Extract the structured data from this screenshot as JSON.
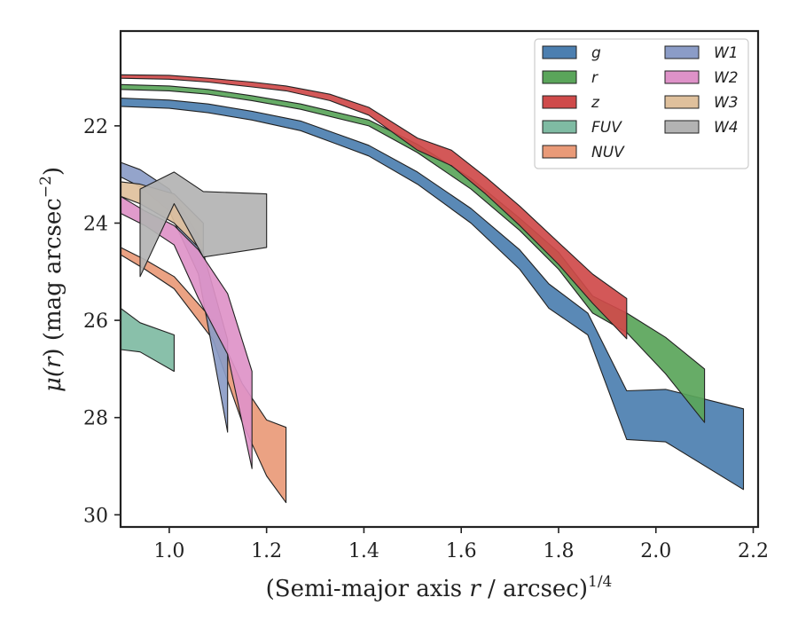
{
  "chart_data": {
    "type": "area",
    "title": "",
    "xlabel": "(Semi-major axis r / arcsec)^1/4",
    "xlabel_parts": {
      "prefix": "(Semi-major axis ",
      "var": "r",
      "mid": " / arcsec)",
      "sup": "1/4"
    },
    "ylabel": "μ(r) (mag arcsec−2)",
    "ylabel_parts": {
      "mu": "μ(",
      "var": "r",
      "close": ") (mag arcsec",
      "sup": "−2",
      "end": ")"
    },
    "xlim": [
      0.9,
      2.21
    ],
    "ylim": [
      30.25,
      20.05
    ],
    "y_inverted": true,
    "xticks": [
      1.0,
      1.2,
      1.4,
      1.6,
      1.8,
      2.0,
      2.2
    ],
    "xtick_labels": [
      "1.0",
      "1.2",
      "1.4",
      "1.6",
      "1.8",
      "2.0",
      "2.2"
    ],
    "yticks": [
      22,
      24,
      26,
      28,
      30
    ],
    "ytick_labels": [
      "22",
      "24",
      "26",
      "28",
      "30"
    ],
    "grid": false,
    "legend_position": "top-right",
    "legend_columns": 2,
    "series": [
      {
        "name": "g",
        "color": "#4c7fb0",
        "x": [
          0.9,
          1.0,
          1.08,
          1.17,
          1.27,
          1.41,
          1.51,
          1.62,
          1.72,
          1.78,
          1.86,
          1.94,
          2.02,
          2.18
        ],
        "y_upper": [
          21.43,
          21.47,
          21.55,
          21.7,
          21.9,
          22.4,
          22.95,
          23.7,
          24.55,
          25.25,
          25.85,
          27.45,
          27.42,
          27.82
        ],
        "y_lower": [
          21.6,
          21.64,
          21.73,
          21.88,
          22.1,
          22.62,
          23.2,
          24.0,
          24.95,
          25.75,
          26.3,
          28.45,
          28.5,
          29.48
        ]
      },
      {
        "name": "r",
        "color": "#5aa55a",
        "x": [
          0.9,
          1.0,
          1.08,
          1.17,
          1.27,
          1.41,
          1.51,
          1.62,
          1.72,
          1.8,
          1.87,
          1.94,
          2.02,
          2.1
        ],
        "y_upper": [
          21.15,
          21.18,
          21.25,
          21.38,
          21.55,
          21.88,
          22.38,
          23.08,
          23.9,
          24.6,
          25.5,
          25.85,
          26.35,
          27.0
        ],
        "y_lower": [
          21.25,
          21.28,
          21.35,
          21.48,
          21.66,
          22.0,
          22.55,
          23.3,
          24.15,
          24.95,
          25.85,
          26.25,
          27.1,
          28.1
        ]
      },
      {
        "name": "z",
        "color": "#cf4a4a",
        "x": [
          0.9,
          1.0,
          1.08,
          1.17,
          1.24,
          1.33,
          1.41,
          1.51,
          1.58,
          1.65,
          1.72,
          1.8,
          1.87,
          1.94
        ],
        "y_upper": [
          20.95,
          20.96,
          21.02,
          21.1,
          21.18,
          21.35,
          21.62,
          22.25,
          22.5,
          23.05,
          23.65,
          24.4,
          25.05,
          25.55
        ],
        "y_lower": [
          21.02,
          21.04,
          21.1,
          21.2,
          21.28,
          21.48,
          21.78,
          22.5,
          22.82,
          23.4,
          24.05,
          24.85,
          25.65,
          26.38
        ]
      },
      {
        "name": "FUV",
        "color": "#7fbba3",
        "x": [
          0.9,
          0.94,
          1.01
        ],
        "y_upper": [
          25.75,
          26.05,
          26.3
        ],
        "y_lower": [
          26.6,
          26.65,
          27.05
        ]
      },
      {
        "name": "NUV",
        "color": "#e99a78",
        "x": [
          0.9,
          0.95,
          1.01,
          1.09,
          1.15,
          1.2,
          1.24
        ],
        "y_upper": [
          24.5,
          24.75,
          25.1,
          26.0,
          27.3,
          28.05,
          28.2
        ],
        "y_lower": [
          24.65,
          24.95,
          25.35,
          26.4,
          28.1,
          29.2,
          29.75
        ]
      },
      {
        "name": "W1",
        "color": "#8b9cc7",
        "x": [
          0.9,
          0.94,
          1.0,
          1.06,
          1.12
        ],
        "y_upper": [
          22.75,
          22.9,
          23.3,
          24.25,
          26.4
        ],
        "y_lower": [
          23.05,
          23.25,
          23.75,
          25.05,
          28.3
        ]
      },
      {
        "name": "W2",
        "color": "#de92c8",
        "x": [
          0.9,
          0.95,
          1.01,
          1.06,
          1.12,
          1.17
        ],
        "y_upper": [
          23.45,
          23.75,
          24.05,
          24.55,
          25.45,
          27.05
        ],
        "y_lower": [
          23.8,
          24.05,
          24.45,
          25.55,
          26.7,
          29.05
        ]
      },
      {
        "name": "W3",
        "color": "#dfc09c",
        "x": [
          0.9,
          0.94,
          1.01,
          1.07
        ],
        "y_upper": [
          23.15,
          23.2,
          23.4,
          24.0
        ],
        "y_lower": [
          23.45,
          23.6,
          24.0,
          24.6
        ]
      },
      {
        "name": "W4",
        "color": "#b3b3b3",
        "polygon": [
          [
            0.94,
            23.3
          ],
          [
            1.01,
            22.95
          ],
          [
            1.07,
            23.35
          ],
          [
            1.2,
            23.4
          ],
          [
            1.2,
            24.5
          ],
          [
            1.07,
            24.7
          ],
          [
            1.01,
            23.6
          ],
          [
            0.94,
            25.1
          ]
        ]
      }
    ]
  }
}
